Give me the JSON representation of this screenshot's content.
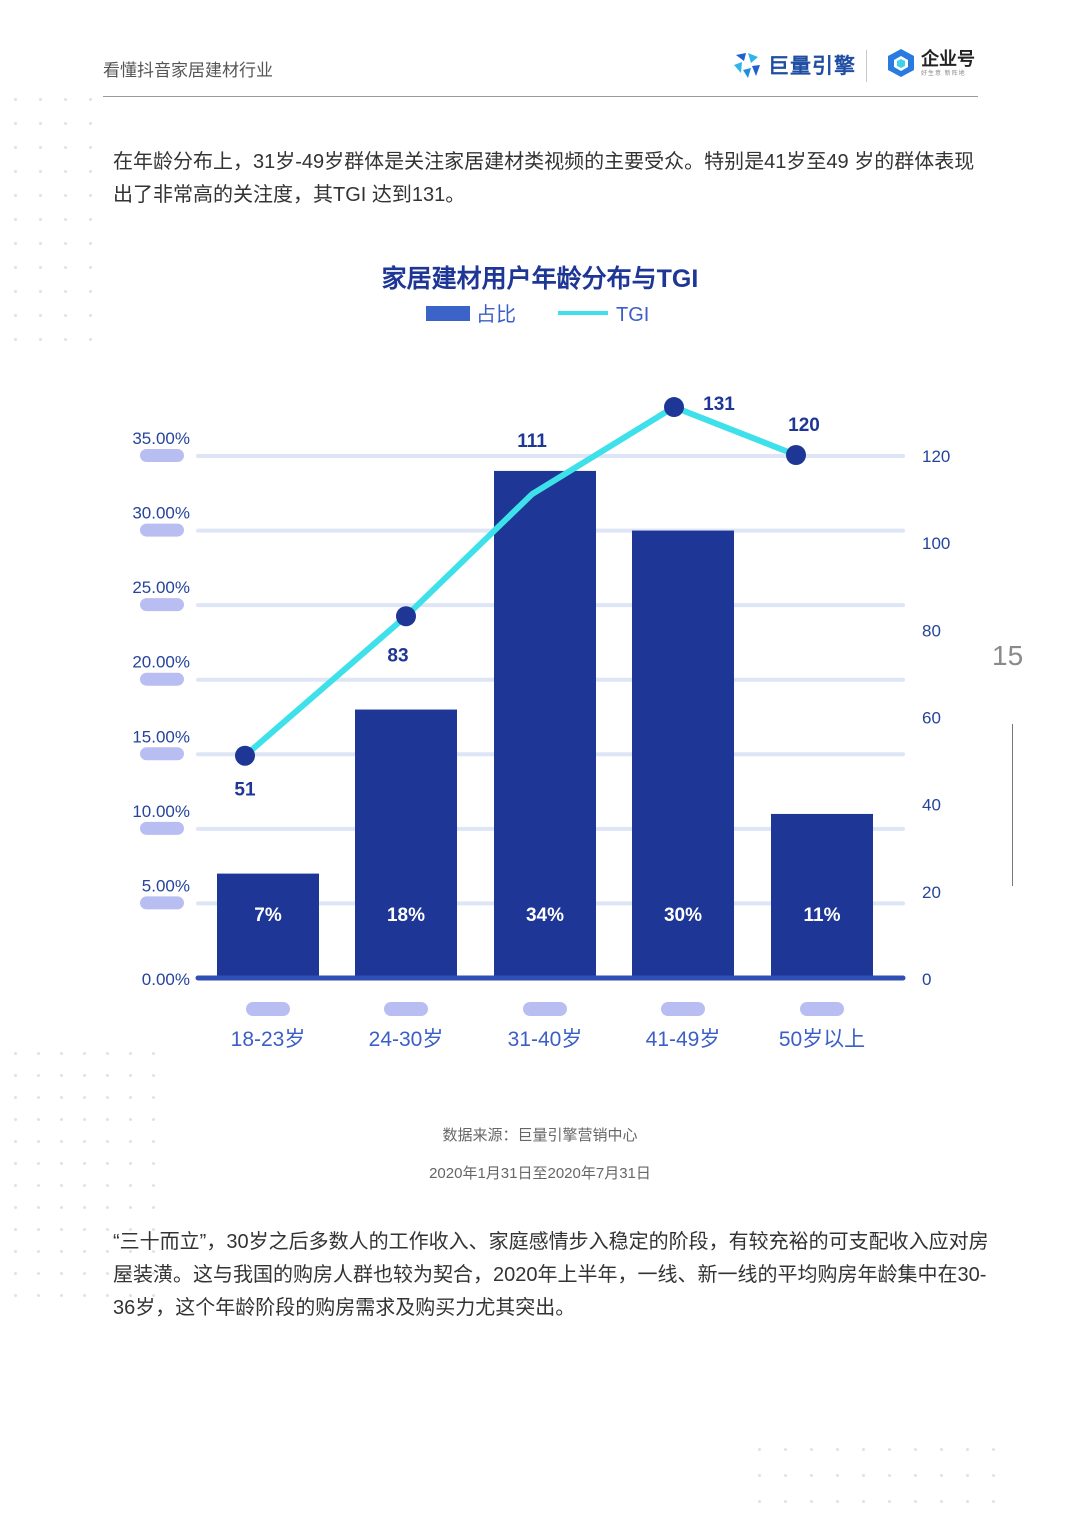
{
  "header": {
    "title": "看懂抖音家居建材行业",
    "brand_primary": "巨量引擎",
    "brand_secondary": "企业号",
    "brand_secondary_sub": "好生意 新阵地"
  },
  "intro_text": "在年龄分布上，31岁-49岁群体是关注家居建材类视频的主要受众。特别是41岁至49 岁的群体表现出了非常高的关注度，其TGI 达到131。",
  "chart_data": {
    "type": "bar",
    "title": "家居建材用户年龄分布与TGI",
    "categories": [
      "18-23岁",
      "24-30岁",
      "31-40岁",
      "41-49岁",
      "50岁以上"
    ],
    "series": [
      {
        "name": "占比",
        "kind": "bar",
        "axis": "left",
        "values": [
          7,
          18,
          34,
          30,
          11
        ],
        "labels": [
          "7%",
          "18%",
          "34%",
          "30%",
          "11%"
        ],
        "color": "#1e3695"
      },
      {
        "name": "TGI",
        "kind": "line",
        "axis": "right",
        "values": [
          51,
          83,
          111,
          131,
          120
        ],
        "labels": [
          "51",
          "83",
          "111",
          "131",
          "120"
        ],
        "color": "#3ee0ea"
      }
    ],
    "left_axis": {
      "ticks": [
        "0.00%",
        "5.00%",
        "10.00%",
        "15.00%",
        "20.00%",
        "25.00%",
        "30.00%",
        "35.00%"
      ],
      "ylim": [
        0,
        35
      ]
    },
    "right_axis": {
      "ticks": [
        "0",
        "20",
        "40",
        "60",
        "80",
        "100",
        "120"
      ],
      "ylim": [
        0,
        120
      ]
    },
    "legend": [
      "占比",
      "TGI"
    ],
    "legend_position": "top-center",
    "grid": true
  },
  "source": {
    "line1": "数据来源：巨量引擎营销中心",
    "line2": "2020年1月31日至2020年7月31日"
  },
  "closing_text": "“三十而立”，30岁之后多数人的工作收入、家庭感情步入稳定的阶段，有较充裕的可支配收入应对房屋装潢。这与我国的购房人群也较为契合，2020年上半年，一线、新一线的平均购房年龄集中在30-36岁，这个年龄阶段的购房需求及购买力尤其突出。",
  "page_number": "15",
  "colors": {
    "bar": "#1e3695",
    "line": "#3ee0ea",
    "grid": "#dde5f6",
    "pill": "#b9bef2",
    "axis_text": "#25449c",
    "baseline": "#2f4fb5"
  }
}
